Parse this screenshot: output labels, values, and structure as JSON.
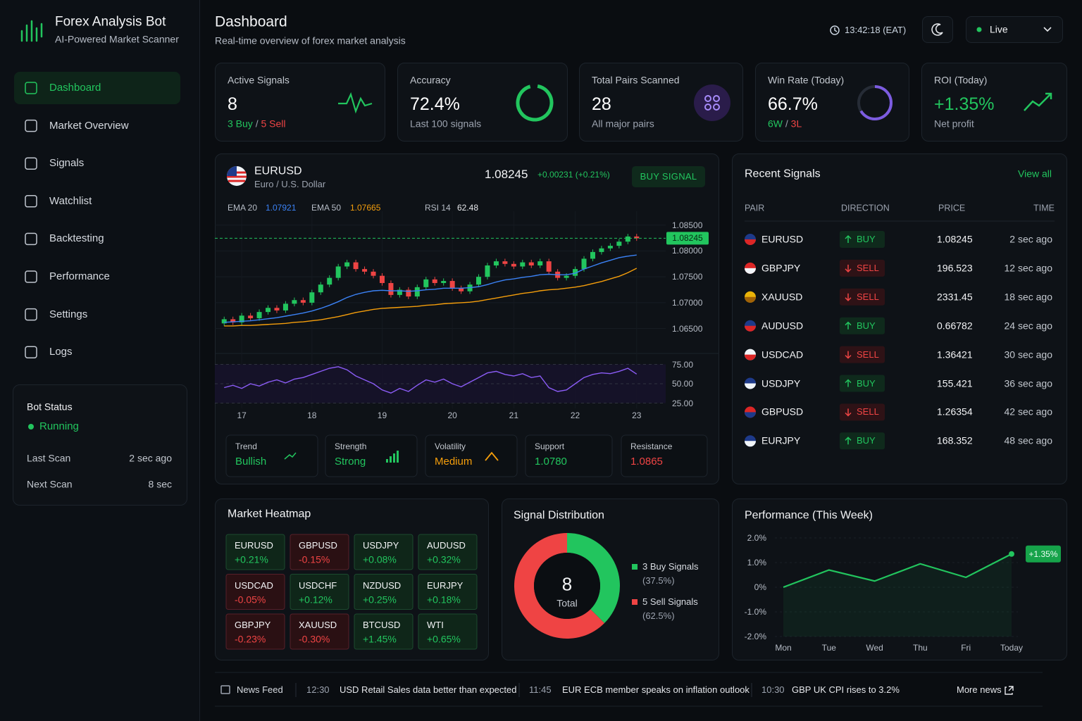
{
  "sidebar": {
    "title": "Forex Analysis Bot",
    "subtitle": "AI-Powered Market Scanner",
    "nav": [
      "Dashboard",
      "Market Overview",
      "Signals",
      "Watchlist",
      "Backtesting",
      "Performance",
      "Settings",
      "Logs"
    ],
    "active": 0,
    "bot_status": {
      "title": "Bot Status",
      "state": "Running",
      "rows": [
        [
          "Last Scan",
          "2 sec ago"
        ],
        [
          "Next Scan",
          "8 sec"
        ]
      ]
    }
  },
  "header": {
    "title": "Dashboard",
    "subtitle": "Real-time overview of forex market analysis",
    "time": "13:42:18 (EAT)",
    "mode": "Live"
  },
  "kpis": [
    {
      "label": "Active Signals",
      "value": "8",
      "value_color": "#ffffff",
      "sub": [
        "3 Buy",
        " / ",
        "5 Sell"
      ],
      "sub_colors": [
        "#22c55e",
        "#9ca3af",
        "#ef4444"
      ]
    },
    {
      "label": "Accuracy",
      "value": "72.4%",
      "value_color": "#ffffff",
      "sub": [
        "Last 100 signals"
      ],
      "sub_colors": [
        "#9ca3af"
      ]
    },
    {
      "label": "Total Pairs Scanned",
      "value": "28",
      "value_color": "#ffffff",
      "sub": [
        "All major pairs"
      ],
      "sub_colors": [
        "#9ca3af"
      ]
    },
    {
      "label": "Win Rate (Today)",
      "value": "66.7%",
      "value_color": "#ffffff",
      "sub": [
        "6W",
        " / ",
        "3L"
      ],
      "sub_colors": [
        "#22c55e",
        "#9ca3af",
        "#ef4444"
      ]
    },
    {
      "label": "ROI (Today)",
      "value": "+1.35%",
      "value_color": "#22c55e",
      "sub": [
        "Net profit"
      ],
      "sub_colors": [
        "#9ca3af"
      ]
    }
  ],
  "chart": {
    "type": "candlestick",
    "pair": "EURUSD",
    "name": "Euro / U.S. Dollar",
    "price": "1.08245",
    "change": "+0.00231 (+0.21%)",
    "signal": "BUY SIGNAL",
    "indicators": [
      {
        "name": "EMA 20",
        "value": "1.07921",
        "color": "#3b82f6"
      },
      {
        "name": "EMA 50",
        "value": "1.07665",
        "color": "#f59e0b"
      },
      {
        "name": "RSI 14",
        "value": "62.48",
        "color": "#e5e7eb"
      }
    ],
    "ylim": [
      1.0625,
      1.087
    ],
    "yticks": [
      {
        "value": 1.085,
        "label": "1.08500"
      },
      {
        "value": 1.08,
        "label": "1.08000"
      },
      {
        "value": 1.075,
        "label": "1.07500"
      },
      {
        "value": 1.07,
        "label": "1.07000"
      },
      {
        "value": 1.065,
        "label": "1.06500"
      }
    ],
    "last_price": {
      "value": 1.08245,
      "label": "1.08245"
    },
    "xlim": [
      -0.5,
      47.5
    ],
    "xticks": [
      {
        "value": 2,
        "label": "17"
      },
      {
        "value": 10,
        "label": "18"
      },
      {
        "value": 18,
        "label": "19"
      },
      {
        "value": 26,
        "label": "20"
      },
      {
        "value": 33,
        "label": "21"
      },
      {
        "value": 40,
        "label": "22"
      },
      {
        "value": 47,
        "label": "23"
      }
    ],
    "open": [
      1.066,
      1.0668,
      1.0662,
      1.0675,
      1.067,
      1.0682,
      1.069,
      1.0685,
      1.0698,
      1.0705,
      1.07,
      1.072,
      1.0735,
      1.0748,
      1.077,
      1.0778,
      1.0765,
      1.076,
      1.0752,
      1.0738,
      1.0715,
      1.0725,
      1.0712,
      1.073,
      1.0745,
      1.0738,
      1.0742,
      1.0728,
      1.0722,
      1.0735,
      1.075,
      1.0772,
      1.078,
      1.0775,
      1.077,
      1.0778,
      1.0772,
      1.078,
      1.076,
      1.0748,
      1.0752,
      1.0765,
      1.0785,
      1.0798,
      1.0805,
      1.081,
      1.0818,
      1.0828
    ],
    "high": [
      1.0673,
      1.0673,
      1.068,
      1.068,
      1.0687,
      1.0695,
      1.0695,
      1.0703,
      1.071,
      1.071,
      1.0725,
      1.074,
      1.0753,
      1.0775,
      1.0783,
      1.0783,
      1.077,
      1.0765,
      1.0757,
      1.0743,
      1.073,
      1.073,
      1.0735,
      1.075,
      1.075,
      1.0747,
      1.0747,
      1.0733,
      1.074,
      1.0755,
      1.0777,
      1.0785,
      1.0785,
      1.078,
      1.0783,
      1.0783,
      1.0785,
      1.0785,
      1.0765,
      1.0757,
      1.077,
      1.079,
      1.0803,
      1.081,
      1.0815,
      1.0823,
      1.0833,
      1.0833
    ],
    "low": [
      1.0655,
      1.0657,
      1.0657,
      1.0665,
      1.0665,
      1.0677,
      1.068,
      1.068,
      1.0693,
      1.0695,
      1.0695,
      1.0715,
      1.073,
      1.0743,
      1.0765,
      1.076,
      1.0755,
      1.0747,
      1.0733,
      1.071,
      1.071,
      1.0707,
      1.0707,
      1.0725,
      1.0733,
      1.0733,
      1.0723,
      1.0717,
      1.0717,
      1.073,
      1.0745,
      1.0767,
      1.077,
      1.0765,
      1.0765,
      1.0767,
      1.0767,
      1.0755,
      1.0743,
      1.0743,
      1.0747,
      1.076,
      1.078,
      1.0793,
      1.08,
      1.0805,
      1.0813,
      1.08195
    ],
    "close": [
      1.0668,
      1.0662,
      1.0675,
      1.067,
      1.0682,
      1.069,
      1.0685,
      1.0698,
      1.0705,
      1.07,
      1.072,
      1.0735,
      1.0748,
      1.077,
      1.0778,
      1.0765,
      1.076,
      1.0752,
      1.0738,
      1.0715,
      1.0725,
      1.0712,
      1.073,
      1.0745,
      1.0738,
      1.0742,
      1.0728,
      1.0722,
      1.0735,
      1.075,
      1.0772,
      1.078,
      1.0775,
      1.077,
      1.0778,
      1.0772,
      1.078,
      1.076,
      1.0748,
      1.0752,
      1.0765,
      1.0785,
      1.0798,
      1.0805,
      1.081,
      1.0818,
      1.0828,
      1.08245
    ],
    "ema20": [
      1.0662,
      1.0663,
      1.0664,
      1.0665,
      1.0667,
      1.0669,
      1.0671,
      1.0674,
      1.0677,
      1.068,
      1.0684,
      1.0689,
      1.0695,
      1.0702,
      1.071,
      1.0716,
      1.072,
      1.0723,
      1.0724,
      1.0723,
      1.0723,
      1.0722,
      1.0723,
      1.0725,
      1.0726,
      1.0728,
      1.0728,
      1.0728,
      1.0729,
      1.0731,
      1.0735,
      1.074,
      1.0744,
      1.0746,
      1.0749,
      1.0751,
      1.0754,
      1.0755,
      1.0754,
      1.0754,
      1.0757,
      1.0765,
      1.0771,
      1.0777,
      1.0782,
      1.0787,
      1.079,
      1.07921
    ],
    "ema50": [
      1.0655,
      1.0655,
      1.0656,
      1.0656,
      1.0657,
      1.0658,
      1.0659,
      1.066,
      1.0662,
      1.0663,
      1.0665,
      1.0667,
      1.067,
      1.0673,
      1.0677,
      1.0681,
      1.0684,
      1.0687,
      1.0689,
      1.069,
      1.0691,
      1.0692,
      1.0693,
      1.0695,
      1.0696,
      1.0698,
      1.0699,
      1.07,
      1.0701,
      1.0703,
      1.0706,
      1.0709,
      1.0712,
      1.0715,
      1.0718,
      1.072,
      1.0723,
      1.0725,
      1.0726,
      1.0728,
      1.073,
      1.0733,
      1.0737,
      1.0741,
      1.0746,
      1.0751,
      1.0758,
      1.07665
    ],
    "rsi": [
      45,
      48,
      44,
      50,
      47,
      52,
      55,
      51,
      56,
      58,
      62,
      66,
      70,
      72,
      68,
      60,
      55,
      50,
      42,
      38,
      44,
      40,
      48,
      55,
      52,
      56,
      50,
      46,
      52,
      58,
      64,
      66,
      62,
      60,
      63,
      58,
      60,
      45,
      40,
      42,
      50,
      58,
      62,
      64,
      63,
      66,
      70,
      62.48
    ],
    "rsi_ylim": [
      20,
      80
    ],
    "rsi_yticks": [
      {
        "value": 75,
        "label": "75.00"
      },
      {
        "value": 50,
        "label": "50.00"
      },
      {
        "value": 25,
        "label": "25.00"
      }
    ],
    "rsi_color": "#8b5cf6",
    "up_color": "#22c55e",
    "down_color": "#ef4444",
    "grid": true
  },
  "stats": [
    {
      "label": "Trend",
      "value": "Bullish",
      "color": "#22c55e"
    },
    {
      "label": "Strength",
      "value": "Strong",
      "color": "#22c55e"
    },
    {
      "label": "Volatility",
      "value": "Medium",
      "color": "#f59e0b"
    },
    {
      "label": "Support",
      "value": "1.0780",
      "color": "#22c55e"
    },
    {
      "label": "Resistance",
      "value": "1.0865",
      "color": "#ef4444"
    }
  ],
  "recent": {
    "title": "Recent Signals",
    "link": "View all",
    "columns": [
      "PAIR",
      "DIRECTION",
      "PRICE",
      "TIME"
    ],
    "rows": [
      [
        "EURUSD",
        "BUY",
        "1.08245",
        "2 sec ago"
      ],
      [
        "GBPJPY",
        "SELL",
        "196.523",
        "12 sec ago"
      ],
      [
        "XAUUSD",
        "SELL",
        "2331.45",
        "18 sec ago"
      ],
      [
        "AUDUSD",
        "BUY",
        "0.66782",
        "24 sec ago"
      ],
      [
        "USDCAD",
        "SELL",
        "1.36421",
        "30 sec ago"
      ],
      [
        "USDJPY",
        "BUY",
        "155.421",
        "36 sec ago"
      ],
      [
        "GBPUSD",
        "SELL",
        "1.26354",
        "42 sec ago"
      ],
      [
        "EURJPY",
        "BUY",
        "168.352",
        "48 sec ago"
      ]
    ]
  },
  "heatmap": {
    "title": "Market Heatmap",
    "cells": [
      [
        "EURUSD",
        "+0.21%"
      ],
      [
        "GBPUSD",
        "-0.15%"
      ],
      [
        "USDJPY",
        "+0.08%"
      ],
      [
        "AUDUSD",
        "+0.32%"
      ],
      [
        "USDCAD",
        "-0.05%"
      ],
      [
        "USDCHF",
        "+0.12%"
      ],
      [
        "NZDUSD",
        "+0.25%"
      ],
      [
        "EURJPY",
        "+0.18%"
      ],
      [
        "GBPJPY",
        "-0.23%"
      ],
      [
        "XAUUSD",
        "-0.30%"
      ],
      [
        "BTCUSD",
        "+1.45%"
      ],
      [
        "WTI",
        "+0.65%"
      ]
    ]
  },
  "distribution": {
    "type": "pie",
    "title": "Signal Distribution",
    "total": "8",
    "total_label": "Total",
    "series": [
      {
        "name": "3 Buy Signals",
        "share": "(37.5%)",
        "value": 3,
        "color": "#22c55e"
      },
      {
        "name": "5 Sell Signals",
        "share": "(62.5%)",
        "value": 5,
        "color": "#ef4444"
      }
    ]
  },
  "performance": {
    "type": "line",
    "title": "Performance (This Week)",
    "categories": [
      "Mon",
      "Tue",
      "Wed",
      "Thu",
      "Fri",
      "Today"
    ],
    "values": [
      0,
      0.7,
      0.25,
      0.95,
      0.4,
      1.35
    ],
    "value_labels": [
      null,
      null,
      null,
      null,
      null,
      "+1.35%"
    ],
    "ylim": [
      -2,
      2
    ],
    "yticks": [
      {
        "value": 2,
        "label": "2.0%"
      },
      {
        "value": 1,
        "label": "1.0%"
      },
      {
        "value": 0,
        "label": "0%"
      },
      {
        "value": -1,
        "label": "-1.0%"
      },
      {
        "value": -2,
        "label": "-2.0%"
      }
    ],
    "color": "#22c55e",
    "grid": true
  },
  "news": {
    "title": "News Feed",
    "items": [
      {
        "time": "12:30",
        "text": "USD Retail Sales data better than expected"
      },
      {
        "time": "11:45",
        "text": "EUR ECB member speaks on inflation outlook"
      },
      {
        "time": "10:30",
        "text": "GBP UK CPI rises to 3.2%"
      }
    ],
    "more": "More news"
  }
}
